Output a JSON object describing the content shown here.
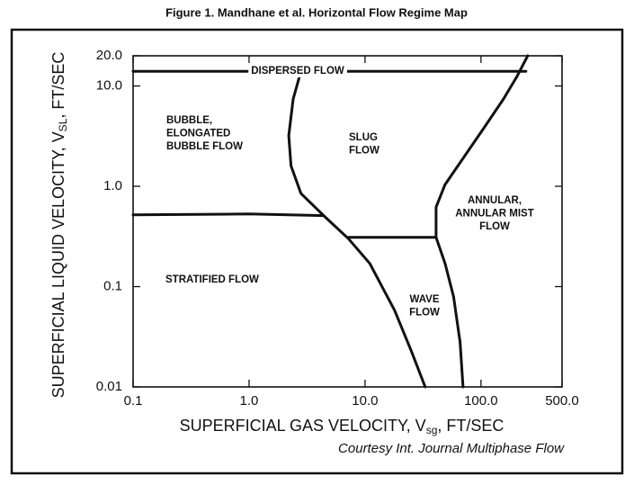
{
  "chart_data": {
    "type": "line",
    "title": "Figure 1. Mandhane et al. Horizontal Flow Regime Map",
    "x_label": {
      "text": "SUPERFICIAL GAS VELOCITY, V",
      "sub": "sg",
      "tail": ", FT/SEC"
    },
    "y_label": {
      "text": "SUPERFICIAL LIQUID VELOCITY, V",
      "sub": "SL",
      "tail": ", FT/SEC"
    },
    "note": "Courtesy Int. Journal Multiphase Flow",
    "xscale": "log",
    "yscale": "log",
    "xlim": [
      0.1,
      500
    ],
    "ylim": [
      0.01,
      20
    ],
    "xticks": [
      0.1,
      {
        "value": 1,
        "label": "1.0"
      },
      {
        "value": 10,
        "label": "10.0"
      },
      {
        "value": 100,
        "label": "100.0"
      },
      {
        "value": 500,
        "label": "500.0"
      }
    ],
    "yticks": [
      0.01,
      0.1,
      {
        "value": 1,
        "label": "1.0"
      },
      {
        "value": 10,
        "label": "10.0"
      },
      {
        "value": 20,
        "label": "20.0"
      }
    ],
    "series": [
      {
        "color": "#111111",
        "x": [
          0.1,
          244
        ],
        "values": [
          14,
          14
        ]
      },
      {
        "color": "#111111",
        "x": [
          2.8,
          2.4,
          2.2,
          2.3,
          2.8,
          4.4,
          7.2,
          11,
          18,
          25,
          33
        ],
        "values": [
          14,
          7.4,
          3.2,
          1.6,
          0.85,
          0.51,
          0.3,
          0.17,
          0.058,
          0.023,
          0.01
        ]
      },
      {
        "color": "#111111",
        "x": [
          0.1,
          1,
          4.4
        ],
        "values": [
          0.52,
          0.53,
          0.51
        ]
      },
      {
        "color": "#111111",
        "x": [
          7.2,
          41
        ],
        "values": [
          0.31,
          0.31
        ]
      },
      {
        "color": "#111111",
        "x": [
          253,
          204,
          156,
          109,
          70,
          49,
          41,
          41,
          49,
          58,
          66,
          70
        ],
        "values": [
          20,
          12.4,
          7.4,
          4.0,
          1.9,
          1.04,
          0.62,
          0.31,
          0.17,
          0.079,
          0.028,
          0.01
        ]
      }
    ],
    "annotations": [
      {
        "lines": [
          "DISPERSED FLOW"
        ]
      },
      {
        "lines": [
          "BUBBLE,",
          "ELONGATED",
          "BUBBLE FLOW"
        ]
      },
      {
        "lines": [
          "SLUG",
          "FLOW"
        ]
      },
      {
        "lines": [
          "ANNULAR,",
          "ANNULAR MIST",
          "FLOW"
        ]
      },
      {
        "lines": [
          "STRATIFIED FLOW"
        ]
      },
      {
        "lines": [
          "WAVE",
          "FLOW"
        ]
      }
    ]
  }
}
